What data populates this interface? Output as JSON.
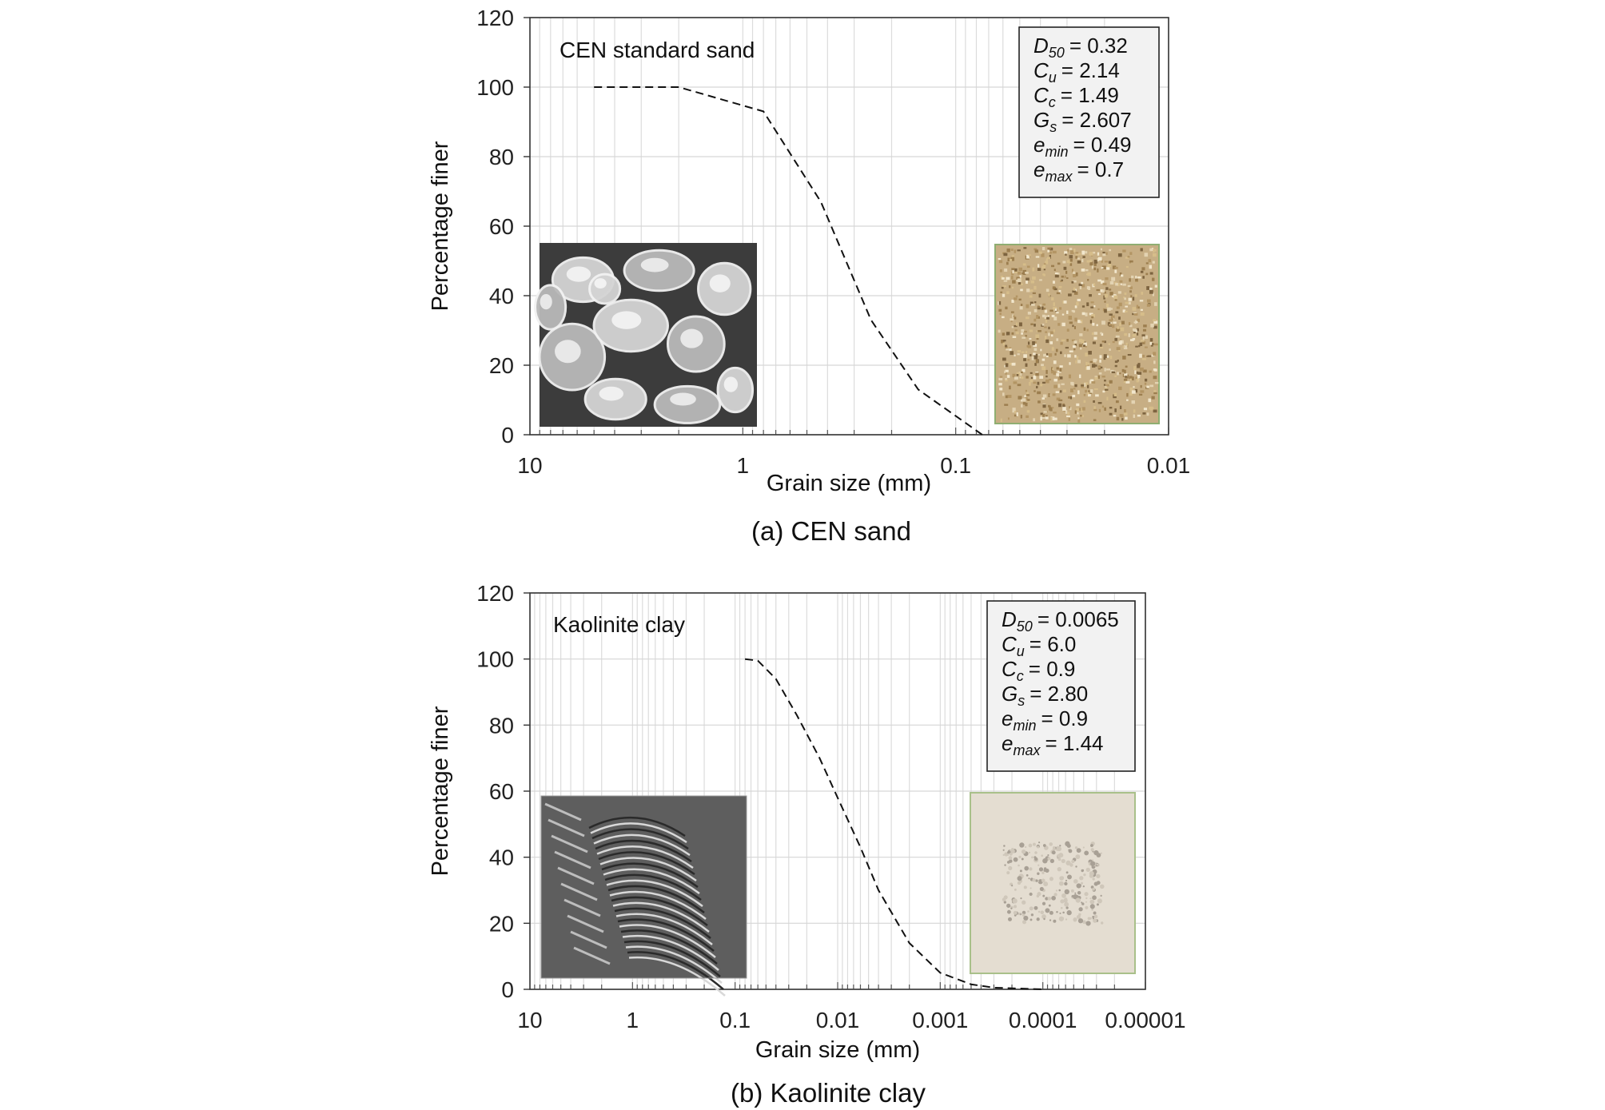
{
  "chart_data": [
    {
      "type": "line",
      "caption": "(a) CEN sand",
      "annotation": "CEN standard sand",
      "xlabel": "Grain size (mm)",
      "ylabel": "Percentage finer",
      "x_scale": "log",
      "x_reversed": true,
      "xlim": [
        10,
        0.01
      ],
      "ylim": [
        0,
        120
      ],
      "x_ticks": [
        "10",
        "1",
        "0.1",
        "0.01"
      ],
      "y_ticks": [
        "0",
        "20",
        "40",
        "60",
        "80",
        "100",
        "120"
      ],
      "grid": true,
      "line_style": "dashed",
      "x": [
        5,
        2,
        0.8,
        0.43,
        0.25,
        0.15,
        0.075
      ],
      "y": [
        100,
        100,
        93,
        67,
        33,
        13,
        0
      ],
      "properties": [
        {
          "symbol": "D",
          "sub": "50",
          "value": "= 0.32"
        },
        {
          "symbol": "C",
          "sub": "u",
          "value": "= 2.14"
        },
        {
          "symbol": "C",
          "sub": "c",
          "value": "= 1.49"
        },
        {
          "symbol": "G",
          "sub": "s",
          "value": "= 2.607"
        },
        {
          "symbol": "e",
          "sub": "min",
          "value": "= 0.49"
        },
        {
          "symbol": "e",
          "sub": "max",
          "value": "= 0.7"
        }
      ],
      "images": [
        "sem-micrograph-sand",
        "sand-sample-photo"
      ]
    },
    {
      "type": "line",
      "caption": "(b) Kaolinite clay",
      "annotation": "Kaolinite clay",
      "xlabel": "Grain size (mm)",
      "ylabel": "Percentage finer",
      "x_scale": "log",
      "x_reversed": true,
      "xlim": [
        10,
        1e-05
      ],
      "ylim": [
        0,
        120
      ],
      "x_ticks": [
        "10",
        "1",
        "0.1",
        "0.01",
        "0.001",
        "0.0001",
        "0.00001"
      ],
      "y_ticks": [
        "0",
        "20",
        "40",
        "60",
        "80",
        "100",
        "120"
      ],
      "grid": true,
      "line_style": "dashed",
      "x": [
        0.08,
        0.06,
        0.04,
        0.025,
        0.015,
        0.01,
        0.006,
        0.004,
        0.002,
        0.001,
        0.0005,
        0.0003,
        0.0001
      ],
      "y": [
        100,
        99.5,
        94,
        83,
        70,
        58,
        43,
        30,
        14,
        5,
        1.5,
        0.5,
        0
      ],
      "properties": [
        {
          "symbol": "D",
          "sub": "50",
          "value": "= 0.0065"
        },
        {
          "symbol": "C",
          "sub": "u",
          "value": "= 6.0"
        },
        {
          "symbol": "C",
          "sub": "c",
          "value": "= 0.9"
        },
        {
          "symbol": "G",
          "sub": "s",
          "value": "= 2.80"
        },
        {
          "symbol": "e",
          "sub": "min",
          "value": "= 0.9"
        },
        {
          "symbol": "e",
          "sub": "max",
          "value": "= 1.44"
        }
      ],
      "images": [
        "sem-micrograph-kaolinite",
        "kaolinite-sample-photo"
      ]
    }
  ]
}
